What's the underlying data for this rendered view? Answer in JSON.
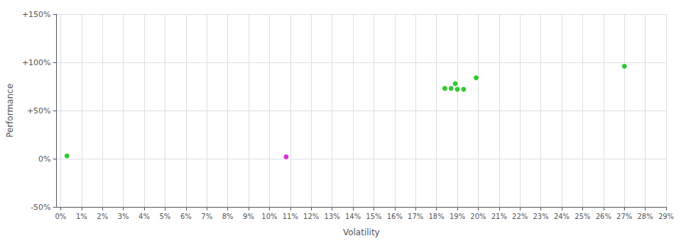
{
  "chart_data": {
    "type": "scatter",
    "xlabel": "Volatility",
    "ylabel": "Performance",
    "grid": true,
    "xlim": [
      -0.002,
      0.29
    ],
    "ylim": [
      -0.5,
      1.5
    ],
    "xticks": [
      {
        "value": 0,
        "label": "0%"
      },
      {
        "value": 0.01,
        "label": "1%"
      },
      {
        "value": 0.02,
        "label": "2%"
      },
      {
        "value": 0.03,
        "label": "3%"
      },
      {
        "value": 0.04,
        "label": "4%"
      },
      {
        "value": 0.05,
        "label": "5%"
      },
      {
        "value": 0.06,
        "label": "6%"
      },
      {
        "value": 0.07,
        "label": "7%"
      },
      {
        "value": 0.08,
        "label": "8%"
      },
      {
        "value": 0.09,
        "label": "9%"
      },
      {
        "value": 0.1,
        "label": "10%"
      },
      {
        "value": 0.11,
        "label": "11%"
      },
      {
        "value": 0.12,
        "label": "12%"
      },
      {
        "value": 0.13,
        "label": "13%"
      },
      {
        "value": 0.14,
        "label": "14%"
      },
      {
        "value": 0.15,
        "label": "15%"
      },
      {
        "value": 0.16,
        "label": "16%"
      },
      {
        "value": 0.17,
        "label": "17%"
      },
      {
        "value": 0.18,
        "label": "18%"
      },
      {
        "value": 0.19,
        "label": "19%"
      },
      {
        "value": 0.2,
        "label": "20%"
      },
      {
        "value": 0.21,
        "label": "21%"
      },
      {
        "value": 0.22,
        "label": "22%"
      },
      {
        "value": 0.23,
        "label": "23%"
      },
      {
        "value": 0.24,
        "label": "24%"
      },
      {
        "value": 0.25,
        "label": "25%"
      },
      {
        "value": 0.26,
        "label": "26%"
      },
      {
        "value": 0.27,
        "label": "27%"
      },
      {
        "value": 0.28,
        "label": "28%"
      },
      {
        "value": 0.29,
        "label": "29%"
      }
    ],
    "yticks": [
      {
        "value": -0.5,
        "label": "-50%"
      },
      {
        "value": 0,
        "label": "0%"
      },
      {
        "value": 0.5,
        "label": "+50%"
      },
      {
        "value": 1,
        "label": "+100%"
      },
      {
        "value": 1.5,
        "label": "+150%"
      }
    ],
    "series": [
      {
        "color": "#00bb00",
        "values": [
          [
            0.003,
            0.03
          ],
          [
            0.184,
            0.73
          ],
          [
            0.187,
            0.73
          ],
          [
            0.19,
            0.72
          ],
          [
            0.193,
            0.72
          ],
          [
            0.189,
            0.78
          ],
          [
            0.199,
            0.84
          ],
          [
            0.27,
            0.96
          ]
        ]
      },
      {
        "color": "#cc00cc",
        "values": [
          [
            0.108,
            0.02
          ]
        ]
      }
    ]
  }
}
